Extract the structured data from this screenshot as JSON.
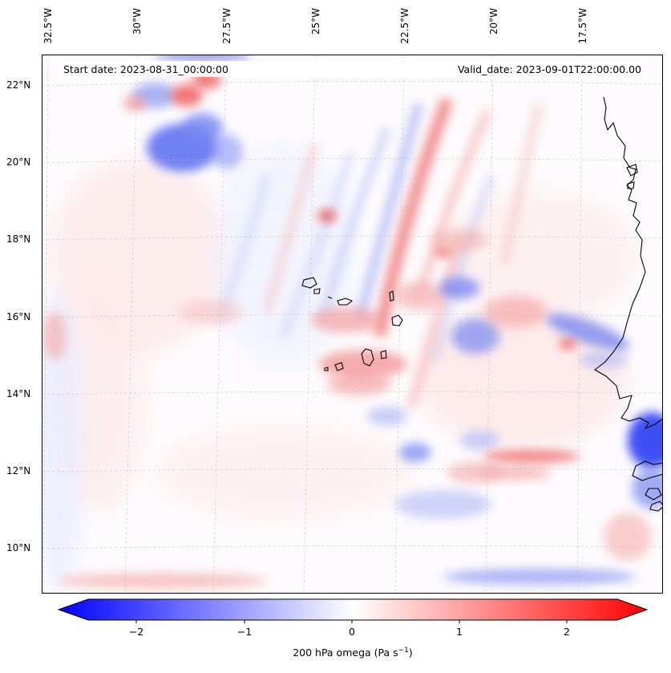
{
  "map": {
    "start_date": "Start date: 2023-08-31_00:00:00",
    "valid_date": "Valid_date: 2023-09-01T22:00:00.00",
    "lon_labels": [
      "32.5°W",
      "30°W",
      "27.5°W",
      "25°W",
      "22.5°W",
      "20°W",
      "17.5°W"
    ],
    "lat_labels": [
      "22°N",
      "20°N",
      "18°N",
      "16°N",
      "14°N",
      "12°N",
      "10°N"
    ],
    "field": "200 hPa omega",
    "colors": {
      "negative": "#0000ff",
      "neutral": "#ffffff",
      "positive": "#ff0000",
      "coast": "#000000"
    }
  },
  "colorbar": {
    "ticks": [
      "−2",
      "−1",
      "0",
      "1",
      "2"
    ],
    "vmin": -2.7,
    "vmax": 2.7,
    "label_main": "200 hPa omega (Pa s",
    "label_sup": "−1",
    "label_end": ")"
  }
}
